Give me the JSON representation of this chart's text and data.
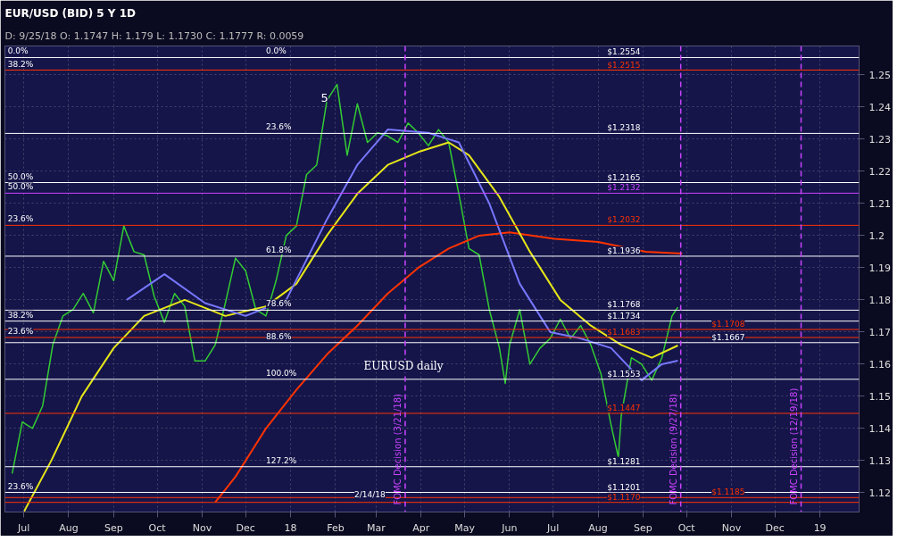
{
  "chart_data": {
    "type": "line",
    "title": "EUR/USD (BID) 5 Y 1D",
    "subtitle": "D: 9/25/18  O: 1.1747  H: 1.179  L: 1.1730  C: 1.1777  R: 0.0059",
    "xlim": [
      "2017-06-18",
      "2019-01-28"
    ],
    "ylim": [
      1.114,
      1.259
    ],
    "xticks": [
      {
        "value": "2017-07-01",
        "label": "Jul"
      },
      {
        "value": "2017-08-01",
        "label": "Aug"
      },
      {
        "value": "2017-09-01",
        "label": "Sep"
      },
      {
        "value": "2017-10-01",
        "label": "Oct"
      },
      {
        "value": "2017-11-01",
        "label": "Nov"
      },
      {
        "value": "2017-12-01",
        "label": "Dec"
      },
      {
        "value": "2018-01-01",
        "label": "18"
      },
      {
        "value": "2018-02-01",
        "label": "Feb"
      },
      {
        "value": "2018-03-01",
        "label": "Mar"
      },
      {
        "value": "2018-04-01",
        "label": "Apr"
      },
      {
        "value": "2018-05-01",
        "label": "May"
      },
      {
        "value": "2018-06-01",
        "label": "Jun"
      },
      {
        "value": "2018-07-01",
        "label": "Jul"
      },
      {
        "value": "2018-08-01",
        "label": "Aug"
      },
      {
        "value": "2018-09-01",
        "label": "Sep"
      },
      {
        "value": "2018-10-01",
        "label": "Oct"
      },
      {
        "value": "2018-11-01",
        "label": "Nov"
      },
      {
        "value": "2018-12-01",
        "label": "Dec"
      },
      {
        "value": "2019-01-01",
        "label": "19"
      }
    ],
    "yticks": [
      1.12,
      1.13,
      1.14,
      1.15,
      1.16,
      1.17,
      1.18,
      1.19,
      {
        "value": 1.2,
        "label": "1.2"
      },
      1.21,
      1.22,
      1.23,
      1.24,
      1.25
    ],
    "grid": true,
    "line_style": "solid",
    "marker": "none",
    "series": [
      {
        "color": "#33cc33",
        "x": [
          "2017-06-23",
          "2017-06-30",
          "2017-07-07",
          "2017-07-14",
          "2017-07-21",
          "2017-07-28",
          "2017-08-04",
          "2017-08-11",
          "2017-08-18",
          "2017-08-25",
          "2017-09-01",
          "2017-09-08",
          "2017-09-15",
          "2017-09-22",
          "2017-09-29",
          "2017-10-06",
          "2017-10-13",
          "2017-10-20",
          "2017-10-27",
          "2017-11-03",
          "2017-11-10",
          "2017-11-17",
          "2017-11-24",
          "2017-12-01",
          "2017-12-08",
          "2017-12-15",
          "2017-12-22",
          "2017-12-29",
          "2018-01-05",
          "2018-01-12",
          "2018-01-19",
          "2018-01-26",
          "2018-02-02",
          "2018-02-09",
          "2018-02-16",
          "2018-02-23",
          "2018-03-02",
          "2018-03-09",
          "2018-03-16",
          "2018-03-23",
          "2018-03-30",
          "2018-04-06",
          "2018-04-13",
          "2018-04-20",
          "2018-04-27",
          "2018-05-04",
          "2018-05-11",
          "2018-05-18",
          "2018-05-25",
          "2018-05-29",
          "2018-06-01",
          "2018-06-08",
          "2018-06-15",
          "2018-06-22",
          "2018-06-29",
          "2018-07-06",
          "2018-07-13",
          "2018-07-20",
          "2018-07-27",
          "2018-08-03",
          "2018-08-10",
          "2018-08-15",
          "2018-08-17",
          "2018-08-24",
          "2018-08-31",
          "2018-09-07",
          "2018-09-14",
          "2018-09-21",
          "2018-09-25"
        ],
        "values": [
          1.126,
          1.142,
          1.14,
          1.147,
          1.166,
          1.175,
          1.177,
          1.182,
          1.176,
          1.192,
          1.186,
          1.203,
          1.195,
          1.194,
          1.181,
          1.173,
          1.182,
          1.178,
          1.161,
          1.161,
          1.166,
          1.179,
          1.193,
          1.189,
          1.177,
          1.175,
          1.186,
          1.2,
          1.203,
          1.219,
          1.222,
          1.242,
          1.247,
          1.225,
          1.241,
          1.229,
          1.232,
          1.231,
          1.229,
          1.235,
          1.232,
          1.228,
          1.233,
          1.229,
          1.213,
          1.196,
          1.194,
          1.177,
          1.165,
          1.154,
          1.166,
          1.177,
          1.16,
          1.165,
          1.168,
          1.174,
          1.168,
          1.172,
          1.166,
          1.157,
          1.141,
          1.131,
          1.144,
          1.162,
          1.16,
          1.155,
          1.162,
          1.175,
          1.1777
        ]
      },
      {
        "color": "#ff3300",
        "x": [
          "2017-11-10",
          "2017-11-24",
          "2017-12-15",
          "2018-01-05",
          "2018-01-26",
          "2018-02-16",
          "2018-03-09",
          "2018-03-30",
          "2018-04-20",
          "2018-05-11",
          "2018-06-01",
          "2018-07-02",
          "2018-08-01",
          "2018-09-03",
          "2018-09-28"
        ],
        "values": [
          1.117,
          1.125,
          1.14,
          1.152,
          1.163,
          1.172,
          1.182,
          1.19,
          1.196,
          1.2,
          1.201,
          1.199,
          1.198,
          1.195,
          1.1944
        ]
      },
      {
        "color": "#e6e619",
        "x": [
          "2017-07-01",
          "2017-07-20",
          "2017-08-10",
          "2017-09-01",
          "2017-09-22",
          "2017-10-20",
          "2017-11-17",
          "2017-12-15",
          "2018-01-05",
          "2018-01-26",
          "2018-02-16",
          "2018-03-09",
          "2018-03-30",
          "2018-04-20",
          "2018-05-04",
          "2018-05-25",
          "2018-06-15",
          "2018-07-06",
          "2018-07-27",
          "2018-08-17",
          "2018-09-07",
          "2018-09-25"
        ],
        "values": [
          1.114,
          1.13,
          1.15,
          1.165,
          1.175,
          1.18,
          1.175,
          1.178,
          1.185,
          1.2,
          1.213,
          1.222,
          1.226,
          1.229,
          1.225,
          1.212,
          1.195,
          1.18,
          1.172,
          1.166,
          1.162,
          1.1658
        ]
      },
      {
        "color": "#7777ff",
        "x": [
          "2017-09-10",
          "2017-10-06",
          "2017-11-03",
          "2017-12-01",
          "2017-12-29",
          "2018-01-26",
          "2018-02-16",
          "2018-03-09",
          "2018-04-06",
          "2018-04-27",
          "2018-05-18",
          "2018-06-08",
          "2018-06-29",
          "2018-07-20",
          "2018-08-10",
          "2018-08-31",
          "2018-09-14",
          "2018-09-25"
        ],
        "values": [
          1.18,
          1.188,
          1.179,
          1.175,
          1.18,
          1.205,
          1.222,
          1.233,
          1.232,
          1.229,
          1.21,
          1.185,
          1.17,
          1.168,
          1.165,
          1.155,
          1.16,
          1.1611
        ]
      }
    ],
    "ref_lines": [
      {
        "axis": "y",
        "value": 1.2554,
        "label": "$1.2554",
        "color": "#ffffff"
      },
      {
        "axis": "y",
        "value": 1.2515,
        "label": "$1.2515",
        "color": "#ff3300"
      },
      {
        "axis": "y",
        "value": 1.2318,
        "label": "$1.2318",
        "color": "#ffffff"
      },
      {
        "axis": "y",
        "value": 1.2165,
        "label": "$1.2165",
        "color": "#ffffff"
      },
      {
        "axis": "y",
        "value": 1.2132,
        "label": "$1.2132",
        "color": "#cc44ff"
      },
      {
        "axis": "y",
        "value": 1.2032,
        "label": "$1.2032",
        "color": "#ff3300"
      },
      {
        "axis": "y",
        "value": 1.1936,
        "label": "$1.1936",
        "color": "#ffffff"
      },
      {
        "axis": "y",
        "value": 1.1768,
        "label": "$1.1768",
        "color": "#ffffff"
      },
      {
        "axis": "y",
        "value": 1.1734,
        "label": "$1.1734",
        "color": "#ffffff"
      },
      {
        "axis": "y",
        "value": 1.1708,
        "label": "$1.1708",
        "color": "#ff3300"
      },
      {
        "axis": "y",
        "value": 1.1683,
        "label": "$1.1683",
        "color": "#ff3300"
      },
      {
        "axis": "y",
        "value": 1.1667,
        "label": "$1.1667",
        "color": "#ffffff"
      },
      {
        "axis": "y",
        "value": 1.1553,
        "label": "$1.1553",
        "color": "#ffffff"
      },
      {
        "axis": "y",
        "value": 1.1447,
        "label": "$1.1447",
        "color": "#ff3300"
      },
      {
        "axis": "y",
        "value": 1.1281,
        "label": "$1.1281",
        "color": "#ffffff"
      },
      {
        "axis": "y",
        "value": 1.1201,
        "label": "$1.1201",
        "color": "#ffffff"
      },
      {
        "axis": "y",
        "value": 1.1185,
        "label": "$1.1185",
        "color": "#ff3300"
      },
      {
        "axis": "y",
        "value": 1.117,
        "label": "$1.1170",
        "color": "#ff3300"
      },
      {
        "axis": "x",
        "value": "2018-03-21",
        "label": "FOMC Decision (3/21/18)",
        "color": "#cc44ff",
        "line_style": "dashed"
      },
      {
        "axis": "x",
        "value": "2018-09-27",
        "label": "FOMC Decision (9/27/18)",
        "color": "#cc44ff",
        "line_style": "dashed"
      },
      {
        "axis": "x",
        "value": "2018-12-19",
        "label": "FOMC Decision (12/19/18)",
        "color": "#cc44ff",
        "line_style": "dashed"
      }
    ],
    "annotations": [
      {
        "text": "0.0%",
        "x": "2017-06-20",
        "y": 1.2554
      },
      {
        "text": "38.2%",
        "x": "2017-06-20",
        "y": 1.2515
      },
      {
        "text": "0.0%",
        "x": "2017-12-15",
        "y": 1.2554
      },
      {
        "text": "23.6%",
        "x": "2017-12-15",
        "y": 1.2318
      },
      {
        "text": "50.0%",
        "x": "2017-06-20",
        "y": 1.2165
      },
      {
        "text": "50.0%",
        "x": "2017-06-20",
        "y": 1.2132
      },
      {
        "text": "23.6%",
        "x": "2017-06-20",
        "y": 1.2032
      },
      {
        "text": "61.8%",
        "x": "2017-12-15",
        "y": 1.1936
      },
      {
        "text": "78.6%",
        "x": "2017-12-15",
        "y": 1.1768
      },
      {
        "text": "38.2%",
        "x": "2017-06-20",
        "y": 1.1734
      },
      {
        "text": "23.6%",
        "x": "2017-06-20",
        "y": 1.1683
      },
      {
        "text": "88.6%",
        "x": "2017-12-15",
        "y": 1.1667
      },
      {
        "text": "100.0%",
        "x": "2017-12-15",
        "y": 1.1553
      },
      {
        "text": "127.2%",
        "x": "2017-12-15",
        "y": 1.1281
      },
      {
        "text": "23.6%",
        "x": "2017-06-20",
        "y": 1.1201
      },
      "5",
      {
        "text": "2/14/18",
        "x": "2018-02-14",
        "y": 1.1175
      },
      "EURUSD daily"
    ]
  }
}
